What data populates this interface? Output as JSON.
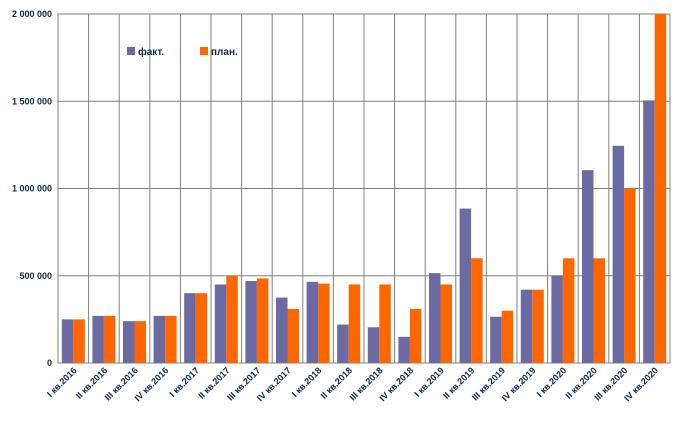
{
  "chart_data": {
    "type": "bar",
    "categories": [
      "I кв.2016",
      "II кв.2016",
      "III кв.2016",
      "IV  кв.2016",
      "I кв.2017",
      "II кв.2017",
      "III кв.2017",
      "IV  кв.2017",
      "I кв.2018",
      "II кв.2018",
      "III кв.2018",
      "IV  кв.2018",
      "I кв.2019",
      "II кв.2019",
      "III кв.2019",
      "IV  кв.2019",
      "I кв.2020",
      "II кв.2020",
      "III кв.2020",
      "IV  кв.2020"
    ],
    "series": [
      {
        "name": "факт.",
        "color": "#6b6aa3",
        "values": [
          250000,
          270000,
          240000,
          270000,
          400000,
          450000,
          470000,
          375000,
          465000,
          220000,
          205000,
          150000,
          515000,
          885000,
          265000,
          420000,
          500000,
          1105000,
          1245000,
          1505000
        ]
      },
      {
        "name": "план.",
        "color": "#ff6600",
        "values": [
          250000,
          270000,
          240000,
          270000,
          400000,
          500000,
          485000,
          310000,
          455000,
          450000,
          450000,
          310000,
          450000,
          600000,
          300000,
          420000,
          600000,
          600000,
          1000000,
          2000000
        ]
      }
    ],
    "yticks": [
      "0",
      "500 000",
      "1 000 000",
      "1 500 000",
      "2 000 000"
    ],
    "ylim": [
      0,
      2000000
    ],
    "grid": true,
    "legend_position": "top-left"
  }
}
